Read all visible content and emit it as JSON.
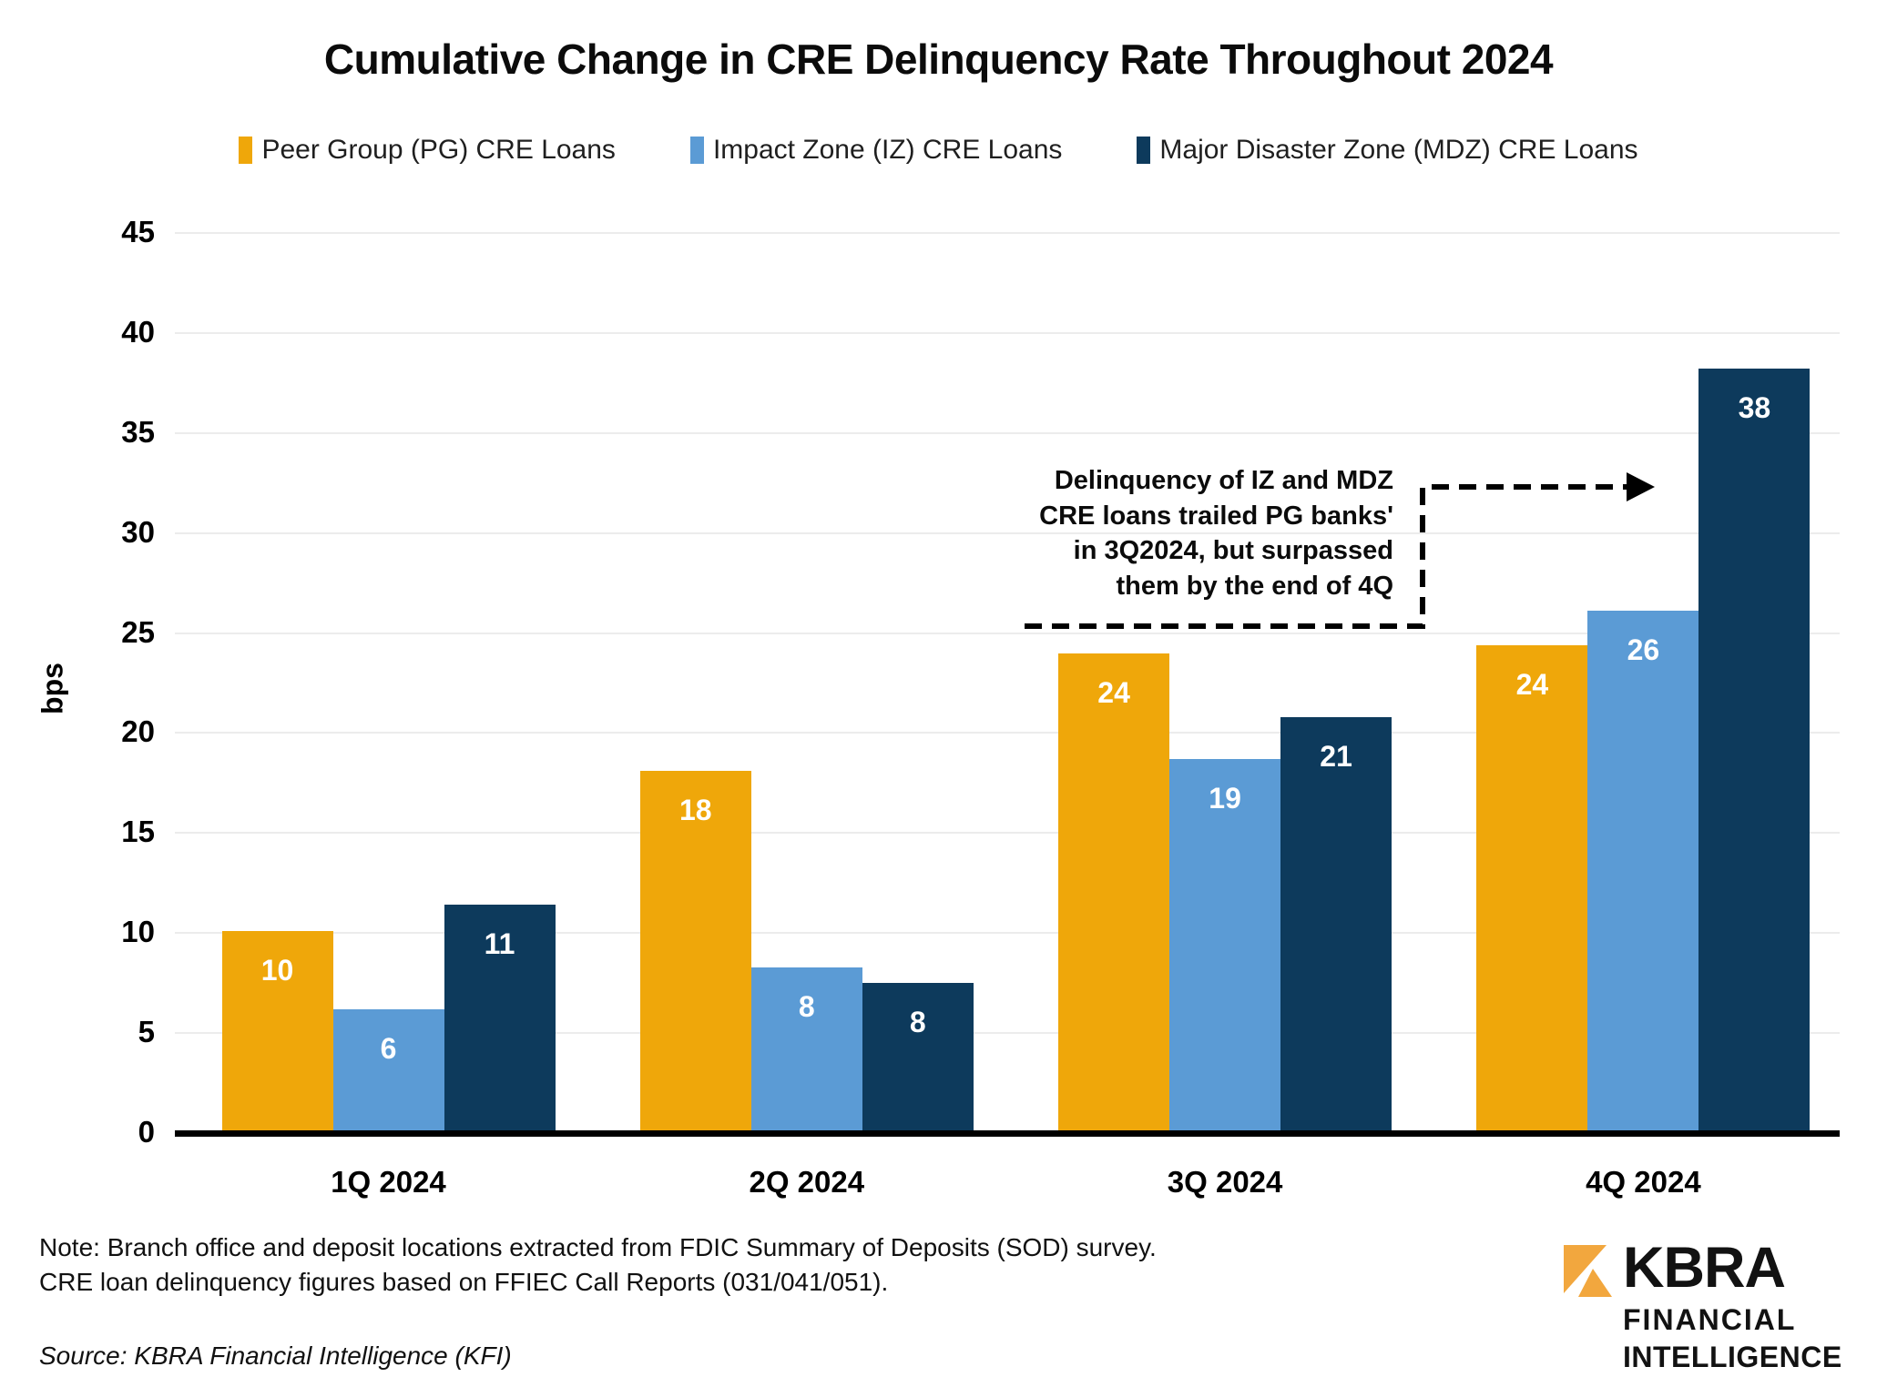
{
  "chart_data": {
    "type": "bar",
    "title": "Cumulative Change in CRE Delinquency Rate Throughout 2024",
    "categories": [
      "1Q 2024",
      "2Q 2024",
      "3Q 2024",
      "4Q 2024"
    ],
    "series": [
      {
        "name": "Peer Group (PG) CRE Loans",
        "short": "pg",
        "color": "#EFA70A",
        "values": [
          10.1,
          18.1,
          24.0,
          24.4
        ],
        "labels": [
          "10",
          "18",
          "24",
          "24"
        ]
      },
      {
        "name": "Impact Zone (IZ) CRE Loans",
        "short": "iz",
        "color": "#5B9BD5",
        "values": [
          6.2,
          8.3,
          18.7,
          26.1
        ],
        "labels": [
          "6",
          "8",
          "19",
          "26"
        ]
      },
      {
        "name": "Major Disaster Zone (MDZ) CRE Loans",
        "short": "mdz",
        "color": "#0D3A5C",
        "values": [
          11.4,
          7.5,
          20.8,
          38.2
        ],
        "labels": [
          "11",
          "8",
          "21",
          "38"
        ]
      }
    ],
    "xlabel": "",
    "ylabel": "bps",
    "ylim": [
      0,
      45
    ],
    "ytick_step": 5,
    "grid": true,
    "legend_position": "top"
  },
  "annotation": {
    "lines": [
      "Delinquency of IZ and MDZ",
      "CRE loans trailed PG banks'",
      "in 3Q2024, but surpassed",
      "them by the end of 4Q"
    ]
  },
  "notes": {
    "line1": "Note: Branch office and deposit locations extracted from FDIC Summary of Deposits (SOD) survey.",
    "line2": "CRE loan delinquency figures based on FFIEC Call Reports (031/041/051)."
  },
  "source": "Source: KBRA Financial Intelligence (KFI)",
  "logo": {
    "wordmark": "KBRA",
    "line1": "FINANCIAL",
    "line2": "INTELLIGENCE",
    "mark_color": "#F2A73E"
  },
  "colors": {
    "pg_orange": "#EFA70A",
    "iz_blue": "#5B9BD5",
    "mdz_navy": "#0D3A5C",
    "gridline": "#ececec",
    "axis": "#000000"
  }
}
